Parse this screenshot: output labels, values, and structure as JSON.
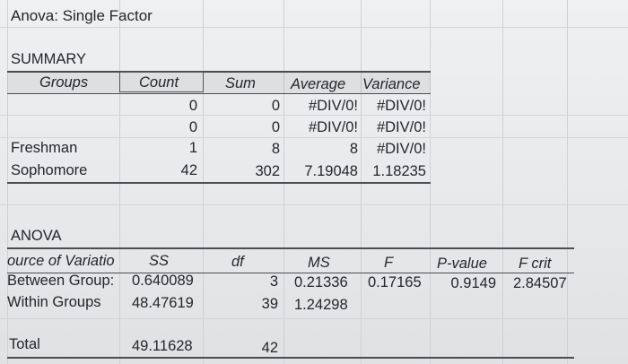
{
  "title": "Anova: Single Factor",
  "summary": {
    "label": "SUMMARY",
    "headers": [
      "Groups",
      "Count",
      "Sum",
      "Average",
      "Variance"
    ],
    "rows": [
      {
        "group": "",
        "count": "0",
        "sum": "0",
        "average": "#DIV/0!",
        "variance": "#DIV/0!"
      },
      {
        "group": "",
        "count": "0",
        "sum": "0",
        "average": "#DIV/0!",
        "variance": "#DIV/0!"
      },
      {
        "group": "Freshman",
        "count": "1",
        "sum": "8",
        "average": "8",
        "variance": "#DIV/0!"
      },
      {
        "group": "Sophomore",
        "count": "42",
        "sum": "302",
        "average": "7.19048",
        "variance": "1.18235"
      }
    ]
  },
  "anova": {
    "label": "ANOVA",
    "headers": [
      "ource of Variatio",
      "SS",
      "df",
      "MS",
      "F",
      "P-value",
      "F crit"
    ],
    "rows": [
      {
        "source": "Between Group:",
        "ss": "0.640089",
        "df": "3",
        "ms": "0.21336",
        "f": "0.17165",
        "p": "0.9149",
        "fcrit": "2.84507"
      },
      {
        "source": "Within Groups",
        "ss": "48.47619",
        "df": "39",
        "ms": "1.24298",
        "f": "",
        "p": "",
        "fcrit": ""
      }
    ],
    "total": {
      "source": "Total",
      "ss": "49.11628",
      "df": "42"
    }
  }
}
